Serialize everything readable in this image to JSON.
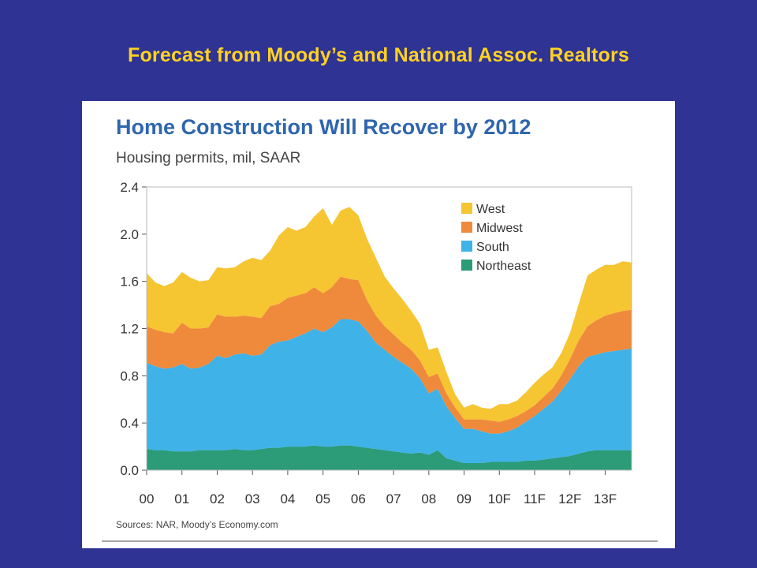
{
  "slide": {
    "title": "Forecast from Moody’s and National Assoc. Realtors"
  },
  "colors": {
    "background": "#2f3393",
    "title": "#ffd21f",
    "west": "#f6c532",
    "midwest": "#ef8a3c",
    "south": "#3fb2e8",
    "northeast": "#2b9b78"
  },
  "chart_data": {
    "type": "area",
    "stacked": true,
    "title": "Home Construction Will Recover by 2012",
    "subtitle": "Housing permits, mil, SAAR",
    "source": "Sources: NAR, Moody’s Economy.com",
    "ylim": [
      0,
      2.4
    ],
    "yticks": [
      "0.0",
      "0.4",
      "0.8",
      "1.2",
      "1.6",
      "2.0",
      "2.4"
    ],
    "xticks": [
      "00",
      "01",
      "02",
      "03",
      "04",
      "05",
      "06",
      "07",
      "08",
      "09",
      "10F",
      "11F",
      "12F",
      "13F"
    ],
    "legend_position": "top-right",
    "grid": false,
    "x": [
      2000.0,
      2000.25,
      2000.5,
      2000.75,
      2001.0,
      2001.25,
      2001.5,
      2001.75,
      2002.0,
      2002.25,
      2002.5,
      2002.75,
      2003.0,
      2003.25,
      2003.5,
      2003.75,
      2004.0,
      2004.25,
      2004.5,
      2004.75,
      2005.0,
      2005.25,
      2005.5,
      2005.75,
      2006.0,
      2006.25,
      2006.5,
      2006.75,
      2007.0,
      2007.25,
      2007.5,
      2007.75,
      2008.0,
      2008.25,
      2008.5,
      2008.75,
      2009.0,
      2009.25,
      2009.5,
      2009.75,
      2010.0,
      2010.25,
      2010.5,
      2010.75,
      2011.0,
      2011.25,
      2011.5,
      2011.75,
      2012.0,
      2012.25,
      2012.5,
      2012.75,
      2013.0,
      2013.25,
      2013.5,
      2013.75
    ],
    "series": [
      {
        "name": "Northeast",
        "values": [
          0.18,
          0.17,
          0.17,
          0.16,
          0.16,
          0.16,
          0.17,
          0.17,
          0.17,
          0.17,
          0.18,
          0.17,
          0.17,
          0.18,
          0.19,
          0.19,
          0.2,
          0.2,
          0.2,
          0.21,
          0.2,
          0.2,
          0.21,
          0.21,
          0.2,
          0.19,
          0.18,
          0.17,
          0.16,
          0.15,
          0.14,
          0.15,
          0.13,
          0.17,
          0.1,
          0.08,
          0.06,
          0.06,
          0.06,
          0.07,
          0.07,
          0.07,
          0.07,
          0.08,
          0.08,
          0.09,
          0.1,
          0.11,
          0.12,
          0.14,
          0.16,
          0.17,
          0.17,
          0.17,
          0.17,
          0.17
        ]
      },
      {
        "name": "South",
        "values": [
          0.73,
          0.71,
          0.69,
          0.71,
          0.74,
          0.7,
          0.7,
          0.73,
          0.8,
          0.78,
          0.8,
          0.82,
          0.8,
          0.8,
          0.87,
          0.9,
          0.9,
          0.93,
          0.96,
          0.99,
          0.97,
          1.01,
          1.07,
          1.07,
          1.06,
          0.99,
          0.9,
          0.85,
          0.8,
          0.76,
          0.72,
          0.63,
          0.52,
          0.52,
          0.44,
          0.36,
          0.29,
          0.29,
          0.27,
          0.24,
          0.24,
          0.26,
          0.29,
          0.33,
          0.38,
          0.43,
          0.48,
          0.56,
          0.65,
          0.74,
          0.8,
          0.81,
          0.83,
          0.84,
          0.85,
          0.86
        ]
      },
      {
        "name": "Midwest",
        "values": [
          0.31,
          0.31,
          0.31,
          0.29,
          0.35,
          0.34,
          0.33,
          0.31,
          0.35,
          0.35,
          0.32,
          0.32,
          0.33,
          0.31,
          0.33,
          0.32,
          0.36,
          0.35,
          0.34,
          0.35,
          0.33,
          0.34,
          0.36,
          0.34,
          0.35,
          0.26,
          0.23,
          0.2,
          0.19,
          0.17,
          0.16,
          0.15,
          0.14,
          0.13,
          0.11,
          0.09,
          0.08,
          0.08,
          0.1,
          0.11,
          0.1,
          0.1,
          0.1,
          0.09,
          0.09,
          0.1,
          0.11,
          0.13,
          0.17,
          0.22,
          0.26,
          0.29,
          0.31,
          0.32,
          0.33,
          0.33
        ]
      },
      {
        "name": "West",
        "values": [
          0.45,
          0.4,
          0.39,
          0.43,
          0.43,
          0.43,
          0.4,
          0.4,
          0.4,
          0.41,
          0.42,
          0.46,
          0.5,
          0.49,
          0.47,
          0.58,
          0.6,
          0.55,
          0.56,
          0.6,
          0.72,
          0.53,
          0.56,
          0.61,
          0.55,
          0.52,
          0.49,
          0.42,
          0.39,
          0.37,
          0.33,
          0.31,
          0.23,
          0.22,
          0.18,
          0.11,
          0.1,
          0.13,
          0.1,
          0.1,
          0.15,
          0.13,
          0.13,
          0.16,
          0.19,
          0.19,
          0.18,
          0.19,
          0.22,
          0.31,
          0.43,
          0.43,
          0.43,
          0.41,
          0.42,
          0.4
        ]
      }
    ]
  }
}
